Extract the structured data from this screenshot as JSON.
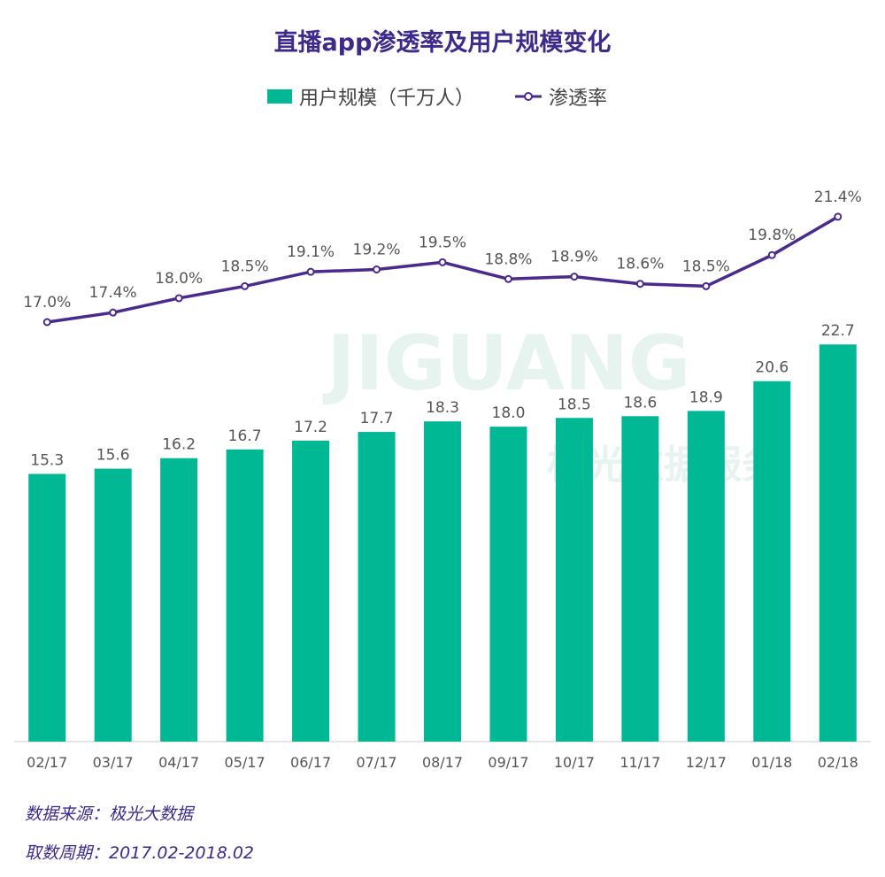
{
  "title": "直播app渗透率及用户规模变化",
  "legend": {
    "bar_label": "用户规模（千万人）",
    "line_label": "渗透率"
  },
  "colors": {
    "bar": "#00b894",
    "line": "#4a2a8e",
    "title": "#3f2a8c",
    "watermark": "#e6f3ee"
  },
  "watermark": {
    "main": "JIGUANG",
    "sub": "极光数据服务"
  },
  "footer": {
    "source": "数据来源：极光大数据",
    "period": "取数周期：2017.02-2018.02"
  },
  "chart_data": {
    "type": "bar",
    "categories": [
      "02/17",
      "03/17",
      "04/17",
      "05/17",
      "06/17",
      "07/17",
      "08/17",
      "09/17",
      "10/17",
      "11/17",
      "12/17",
      "01/18",
      "02/18"
    ],
    "series": [
      {
        "name": "用户规模（千万人）",
        "type": "bar",
        "values": [
          15.3,
          15.6,
          16.2,
          16.7,
          17.2,
          17.7,
          18.3,
          18.0,
          18.5,
          18.6,
          18.9,
          20.6,
          22.7
        ],
        "labels": [
          "15.3",
          "15.6",
          "16.2",
          "16.7",
          "17.2",
          "17.7",
          "18.3",
          "18.0",
          "18.5",
          "18.6",
          "18.9",
          "20.6",
          "22.7"
        ]
      },
      {
        "name": "渗透率",
        "type": "line",
        "values": [
          17.0,
          17.4,
          18.0,
          18.5,
          19.1,
          19.2,
          19.5,
          18.8,
          18.9,
          18.6,
          18.5,
          19.8,
          21.4
        ],
        "labels": [
          "17.0%",
          "17.4%",
          "18.0%",
          "18.5%",
          "19.1%",
          "19.2%",
          "19.5%",
          "18.8%",
          "18.9%",
          "18.6%",
          "18.5%",
          "19.8%",
          "21.4%"
        ]
      }
    ],
    "xlabel": "",
    "ylabel": "",
    "grid": false,
    "legend_position": "top-center"
  }
}
